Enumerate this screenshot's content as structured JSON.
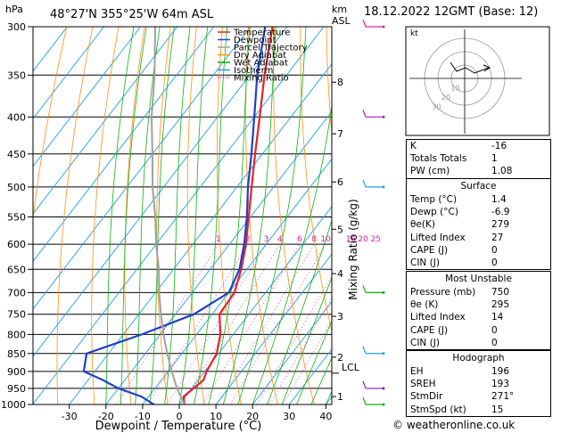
{
  "header": {
    "location": "48°27'N  355°25'W  64m  ASL",
    "date": "18.12.2022  12GMT  (Base: 12)",
    "hpa_label": "hPa",
    "km_label": "km",
    "asl_label": "ASL"
  },
  "axes": {
    "xlabel": "Dewpoint / Temperature (°C)",
    "right_label": "Mixing Ratio (g/kg)",
    "x_ticks": [
      "-30",
      "-20",
      "-10",
      "0",
      "10",
      "20",
      "30",
      "40"
    ],
    "y_ticks": [
      "300",
      "350",
      "400",
      "450",
      "500",
      "550",
      "600",
      "650",
      "700",
      "750",
      "800",
      "850",
      "900",
      "950",
      "1000"
    ],
    "km_ticks": [
      "8",
      "7",
      "6",
      "5",
      "4",
      "3",
      "2",
      "1"
    ],
    "lcl_label": "LCL",
    "mixing_ratio_labels": [
      "1",
      "2",
      "3",
      "4",
      "6",
      "8",
      "10",
      "16",
      "20",
      "25"
    ]
  },
  "legend": {
    "items": [
      {
        "label": "Temperature",
        "color": "#e8202a"
      },
      {
        "label": "Dewpoint",
        "color": "#2040c8"
      },
      {
        "label": "Parcel Trajectory",
        "color": "#a0a0a0"
      },
      {
        "label": "Dry Adiabat",
        "color": "#ff9010"
      },
      {
        "label": "Wet Adiabat",
        "color": "#10b010"
      },
      {
        "label": "Isotherm",
        "color": "#20a0e0"
      },
      {
        "label": "Mixing Ratio",
        "color": "#e020a0"
      }
    ]
  },
  "chart_data": {
    "type": "line",
    "title": "",
    "xlabel": "Dewpoint / Temperature (°C)",
    "ylabel": "hPa",
    "xlim": [
      -40,
      40
    ],
    "ylim": [
      1000,
      300
    ],
    "series": [
      {
        "name": "Temperature",
        "color": "#e8202a",
        "points": [
          [
            1000,
            1.4
          ],
          [
            975,
            -0.5
          ],
          [
            950,
            0.5
          ],
          [
            925,
            1.5
          ],
          [
            900,
            0.5
          ],
          [
            850,
            -0.5
          ],
          [
            800,
            -3.5
          ],
          [
            750,
            -8.0
          ],
          [
            700,
            -8.5
          ],
          [
            650,
            -11.5
          ],
          [
            600,
            -15.5
          ],
          [
            550,
            -20.5
          ],
          [
            500,
            -26
          ],
          [
            450,
            -32
          ],
          [
            400,
            -38.5
          ],
          [
            350,
            -46
          ],
          [
            300,
            -54
          ]
        ]
      },
      {
        "name": "Dewpoint",
        "color": "#2040c8",
        "points": [
          [
            1000,
            -6.9
          ],
          [
            975,
            -12
          ],
          [
            950,
            -20
          ],
          [
            925,
            -26
          ],
          [
            900,
            -33
          ],
          [
            850,
            -36
          ],
          [
            800,
            -25
          ],
          [
            750,
            -15
          ],
          [
            700,
            -10
          ],
          [
            650,
            -12
          ],
          [
            600,
            -16
          ],
          [
            550,
            -21
          ],
          [
            500,
            -27
          ],
          [
            450,
            -33
          ],
          [
            400,
            -40
          ],
          [
            350,
            -48
          ],
          [
            300,
            -56
          ]
        ]
      },
      {
        "name": "Parcel Trajectory",
        "color": "#a0a0a0",
        "points": [
          [
            1000,
            1.4
          ],
          [
            950,
            -4
          ],
          [
            900,
            -9
          ],
          [
            850,
            -14
          ],
          [
            800,
            -19
          ],
          [
            750,
            -24
          ],
          [
            700,
            -29
          ],
          [
            650,
            -34
          ],
          [
            600,
            -40
          ],
          [
            550,
            -46
          ],
          [
            500,
            -53
          ],
          [
            450,
            -60
          ],
          [
            400,
            -68
          ],
          [
            350,
            -76
          ],
          [
            300,
            -86
          ]
        ]
      }
    ]
  },
  "hodograph": {
    "label": "kt",
    "ring_labels": [
      "10",
      "20",
      "30"
    ]
  },
  "indices": [
    {
      "label": "K",
      "value": "-16"
    },
    {
      "label": "Totals Totals",
      "value": "1"
    },
    {
      "label": "PW (cm)",
      "value": "1.08"
    }
  ],
  "surface": {
    "title": "Surface",
    "rows": [
      {
        "label": "Temp (°C)",
        "value": "1.4"
      },
      {
        "label": "Dewp (°C)",
        "value": "-6.9"
      },
      {
        "label": "θe(K)",
        "value": "279"
      },
      {
        "label": "Lifted Index",
        "value": "27"
      },
      {
        "label": "CAPE (J)",
        "value": "0"
      },
      {
        "label": "CIN (J)",
        "value": "0"
      }
    ]
  },
  "unstable": {
    "title": "Most Unstable",
    "rows": [
      {
        "label": "Pressure (mb)",
        "value": "750"
      },
      {
        "label": "θe (K)",
        "value": "295"
      },
      {
        "label": "Lifted Index",
        "value": "14"
      },
      {
        "label": "CAPE (J)",
        "value": "0"
      },
      {
        "label": "CIN (J)",
        "value": "0"
      }
    ]
  },
  "hodo_table": {
    "title": "Hodograph",
    "rows": [
      {
        "label": "EH",
        "value": "196"
      },
      {
        "label": "SREH",
        "value": "193"
      },
      {
        "label": "StmDir",
        "value": "271°"
      },
      {
        "label": "StmSpd (kt)",
        "value": "15"
      }
    ]
  },
  "footer": "© weatheronline.co.uk"
}
